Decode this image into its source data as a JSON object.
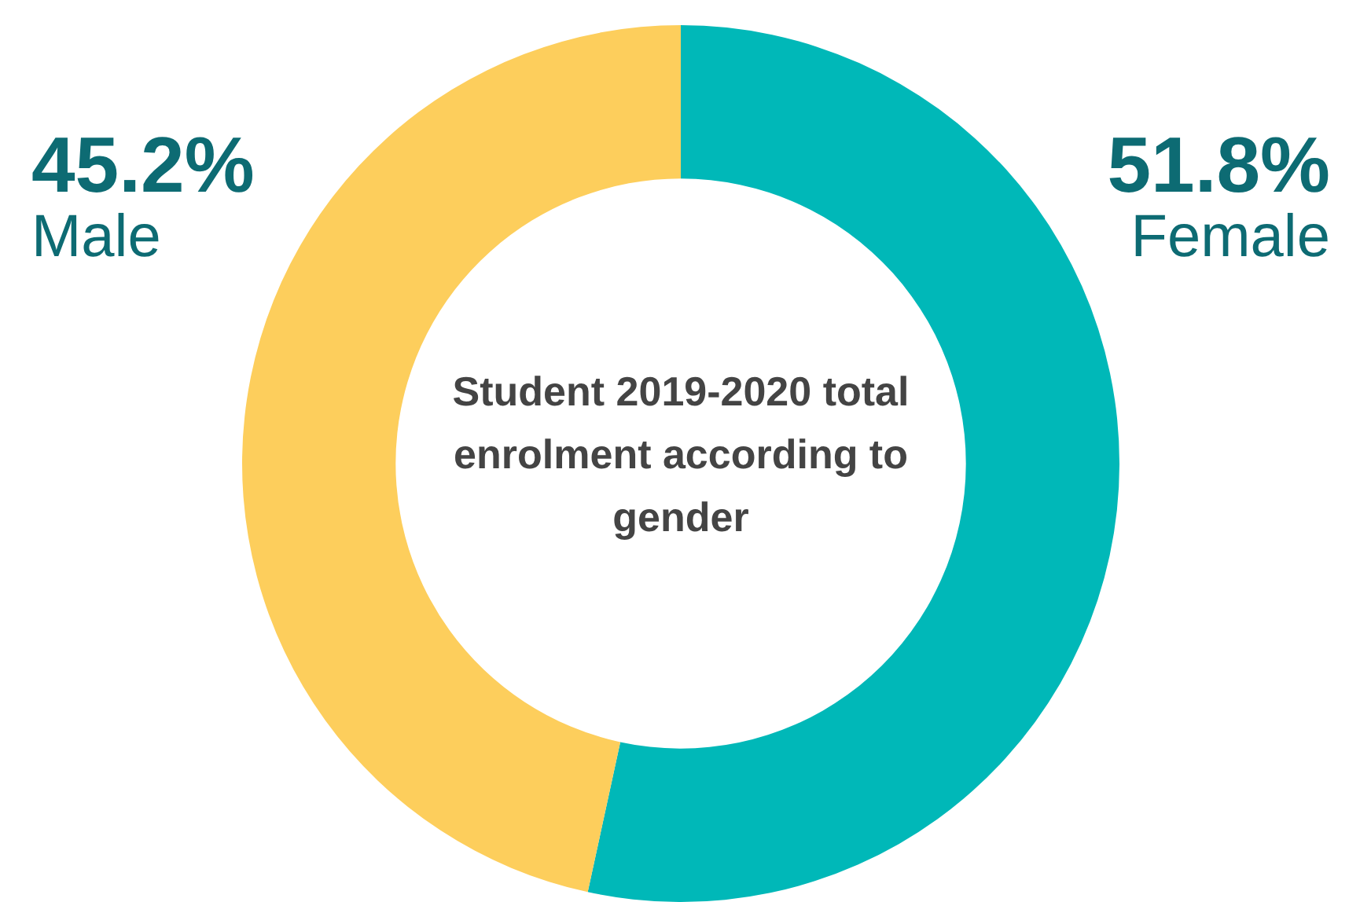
{
  "chart_data": {
    "type": "donut",
    "title": "Student 2019-2020 total enrolment according to gender",
    "categories": [
      "Female",
      "Male"
    ],
    "values": [
      51.8,
      45.2
    ],
    "value_labels": [
      "51.8%",
      "45.2%"
    ],
    "colors": [
      "#00b8b8",
      "#fdce5c"
    ],
    "legend": false
  }
}
